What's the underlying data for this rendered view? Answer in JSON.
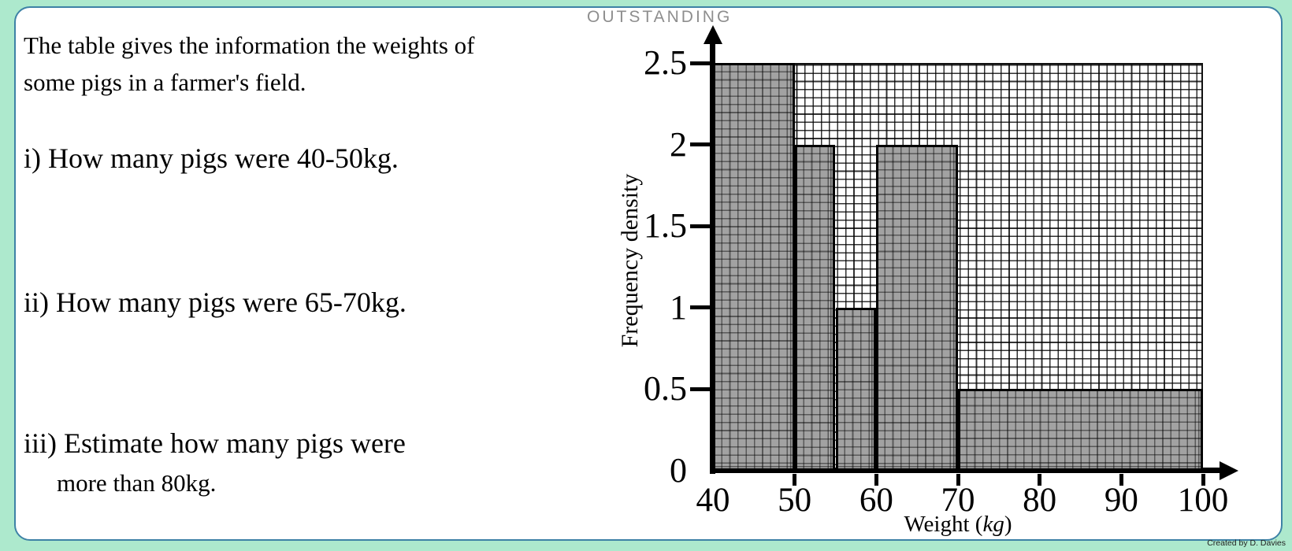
{
  "page": {
    "background_color": "#ade9cd",
    "card_border_color": "#3e82a6",
    "watermark": "OUTSTANDING",
    "credit": "Created by D. Davies"
  },
  "questions": {
    "intro_line1": "The table gives the information the weights of",
    "intro_line2": "some pigs in a farmer's field.",
    "q1": "i) How many pigs were 40-50kg.",
    "q2": "ii) How many pigs were 65-70kg.",
    "q3_line1": "iii) Estimate how many pigs were",
    "q3_line2": "more than 80kg."
  },
  "chart_data": {
    "type": "bar",
    "subtype": "histogram",
    "title": "",
    "xlabel": "Weight (kg)",
    "xlabel_parts": {
      "pre": "Weight (",
      "unit": "kg",
      "post": ")"
    },
    "ylabel": "Frequency density",
    "xlim": [
      40,
      100
    ],
    "ylim": [
      0,
      2.5
    ],
    "x_ticks": [
      40,
      50,
      60,
      70,
      80,
      90,
      100
    ],
    "y_ticks": [
      0,
      0.5,
      1,
      1.5,
      2,
      2.5
    ],
    "grid": "fine square graph-paper grid, on",
    "legend": "none",
    "bars": [
      {
        "range": [
          40,
          50
        ],
        "frequency_density": 2.5
      },
      {
        "range": [
          50,
          55
        ],
        "frequency_density": 2
      },
      {
        "range": [
          55,
          60
        ],
        "frequency_density": 1
      },
      {
        "range": [
          60,
          70
        ],
        "frequency_density": 2
      },
      {
        "range": [
          70,
          100
        ],
        "frequency_density": 0.5
      }
    ],
    "bar_fill_color": "#a2a2a2",
    "bar_border_color": "#000000"
  }
}
